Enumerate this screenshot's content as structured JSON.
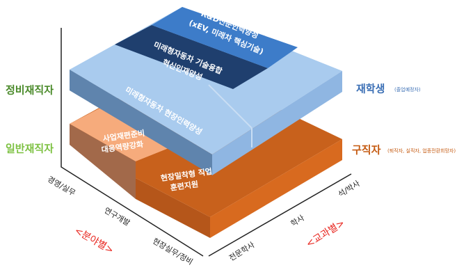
{
  "blocks": {
    "rnd": [
      "R&D전문인력양성",
      "(xEV, 미래차 핵심기술)"
    ],
    "convergence": [
      "미래형자동차 기술융합",
      "혁신인재양성"
    ],
    "field": [
      "미래형자동차 현장인력양성"
    ],
    "restructure": [
      "사업재편준비",
      "대응역량강화"
    ],
    "training": [
      "현장밀착형 직업",
      "훈련지원"
    ]
  },
  "left_labels": [
    "정비재직자",
    "일반재직자"
  ],
  "right_labels": [
    {
      "main": "재학생",
      "note": "(졸업예정자)"
    },
    {
      "main": "구직자",
      "note": "(퇴직자, 실직자, 업종전환희망자)"
    }
  ],
  "axis_field": {
    "title": "<분야별>",
    "items": [
      "경영/실무",
      "연구개발",
      "현장실무/정비"
    ]
  },
  "axis_course": {
    "title": "<교과별>",
    "items": [
      "전문학사",
      "학사",
      "석/박사"
    ]
  }
}
